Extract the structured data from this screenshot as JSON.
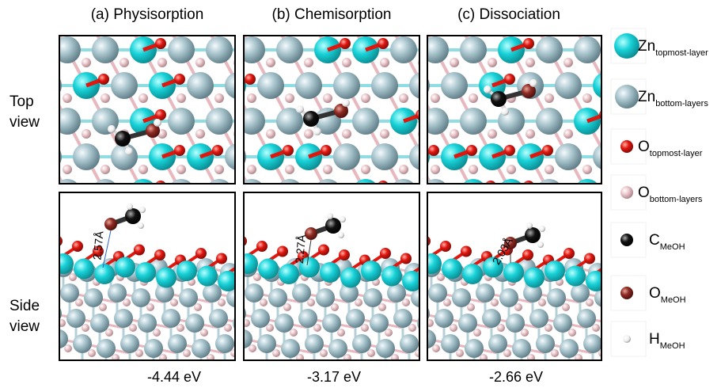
{
  "columns": [
    {
      "title": "(a) Physisorption",
      "distance": "2.57Å",
      "energy": "-4.44 eV"
    },
    {
      "title": "(b) Chemisorption",
      "distance": "2.27Å",
      "energy": "-3.17 eV"
    },
    {
      "title": "(c) Dissociation",
      "distance": "2.03Å",
      "energy": "-2.66 eV"
    }
  ],
  "rows": [
    {
      "label": [
        "Top",
        "view"
      ]
    },
    {
      "label": [
        "Side",
        "view"
      ]
    }
  ],
  "legend": [
    {
      "symbol": "Zn",
      "subscript": "topmost-layer"
    },
    {
      "symbol": "Zn",
      "subscript": "bottom-layers"
    },
    {
      "symbol": "O",
      "subscript": "topmost-layer"
    },
    {
      "symbol": "O",
      "subscript": "bottom-layers"
    },
    {
      "symbol": "C",
      "subscript": "MeOH"
    },
    {
      "symbol": "O",
      "subscript": "MeOH"
    },
    {
      "symbol": "H",
      "subscript": "MeOH"
    }
  ]
}
